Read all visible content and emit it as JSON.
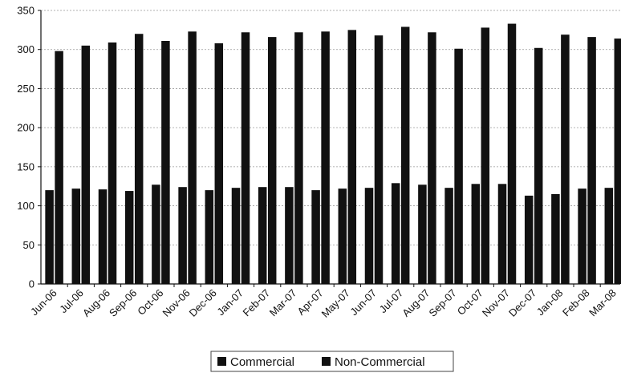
{
  "chart_data": {
    "type": "bar",
    "categories": [
      "Jun-06",
      "Jul-06",
      "Aug-06",
      "Sep-06",
      "Oct-06",
      "Nov-06",
      "Dec-06",
      "Jan-07",
      "Feb-07",
      "Mar-07",
      "Apr-07",
      "May-07",
      "Jun-07",
      "Jul-07",
      "Aug-07",
      "Sep-07",
      "Oct-07",
      "Nov-07",
      "Dec-07",
      "Jan-08",
      "Feb-08",
      "Mar-08"
    ],
    "series": [
      {
        "name": "Commercial",
        "color": "#111111",
        "values": [
          120,
          122,
          121,
          119,
          127,
          124,
          120,
          123,
          124,
          124,
          120,
          122,
          123,
          129,
          127,
          123,
          128,
          128,
          113,
          115,
          122,
          123
        ]
      },
      {
        "name": "Non-Commercial",
        "color": "#111111",
        "values": [
          298,
          305,
          309,
          320,
          311,
          323,
          308,
          322,
          316,
          322,
          323,
          325,
          318,
          329,
          322,
          301,
          328,
          333,
          302,
          319,
          316,
          314
        ]
      }
    ],
    "ylim": [
      0,
      350
    ],
    "yticks": [
      "0",
      "50",
      "100",
      "150",
      "200",
      "250",
      "300",
      "350"
    ],
    "grid": true,
    "legend_position": "bottom"
  }
}
